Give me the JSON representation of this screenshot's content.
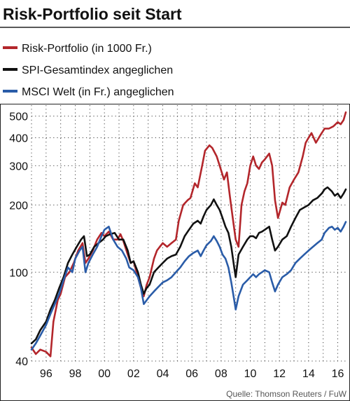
{
  "chart_data": {
    "type": "line",
    "title": "Risk-Portfolio seit Start",
    "source": "Quelle: Thomson Reuters / FuW",
    "y_scale": "log",
    "ylim": [
      40,
      560
    ],
    "xlim": [
      1995.0,
      2016.6
    ],
    "y_ticks": [
      40,
      100,
      200,
      300,
      400,
      500
    ],
    "y_tick_labels": [
      "40",
      "100",
      "200",
      "300",
      "400",
      "500"
    ],
    "x_ticks": [
      1996,
      1998,
      2000,
      2002,
      2004,
      2006,
      2008,
      2010,
      2012,
      2014,
      2016
    ],
    "x_tick_labels": [
      "96",
      "98",
      "00",
      "02",
      "04",
      "06",
      "08",
      "10",
      "12",
      "14",
      "16"
    ],
    "grid": "dotted",
    "legend_placement": "top",
    "series": [
      {
        "name": "Risk-Portfolio (in 1000 Fr.)",
        "color": "#b3262b",
        "points": [
          [
            1995.0,
            46
          ],
          [
            1995.3,
            43
          ],
          [
            1995.6,
            45
          ],
          [
            1996.0,
            44
          ],
          [
            1996.3,
            42
          ],
          [
            1996.5,
            60
          ],
          [
            1996.8,
            75
          ],
          [
            1997.0,
            80
          ],
          [
            1997.3,
            95
          ],
          [
            1997.6,
            100
          ],
          [
            1997.9,
            110
          ],
          [
            1998.2,
            125
          ],
          [
            1998.5,
            135
          ],
          [
            1998.7,
            110
          ],
          [
            1998.9,
            115
          ],
          [
            1999.2,
            125
          ],
          [
            1999.5,
            140
          ],
          [
            1999.8,
            150
          ],
          [
            2000.0,
            145
          ],
          [
            2000.3,
            152
          ],
          [
            2000.6,
            140
          ],
          [
            2000.9,
            140
          ],
          [
            2001.1,
            148
          ],
          [
            2001.3,
            138
          ],
          [
            2001.6,
            120
          ],
          [
            2001.8,
            110
          ],
          [
            2002.0,
            112
          ],
          [
            2002.3,
            95
          ],
          [
            2002.5,
            85
          ],
          [
            2002.7,
            78
          ],
          [
            2002.9,
            88
          ],
          [
            2003.1,
            95
          ],
          [
            2003.4,
            115
          ],
          [
            2003.6,
            125
          ],
          [
            2003.8,
            130
          ],
          [
            2004.0,
            135
          ],
          [
            2004.3,
            130
          ],
          [
            2004.6,
            135
          ],
          [
            2004.9,
            140
          ],
          [
            2005.1,
            170
          ],
          [
            2005.4,
            200
          ],
          [
            2005.7,
            210
          ],
          [
            2005.9,
            215
          ],
          [
            2006.2,
            250
          ],
          [
            2006.4,
            240
          ],
          [
            2006.7,
            300
          ],
          [
            2006.9,
            350
          ],
          [
            2007.2,
            370
          ],
          [
            2007.4,
            360
          ],
          [
            2007.7,
            330
          ],
          [
            2007.9,
            300
          ],
          [
            2008.2,
            260
          ],
          [
            2008.4,
            280
          ],
          [
            2008.6,
            220
          ],
          [
            2008.8,
            175
          ],
          [
            2009.0,
            140
          ],
          [
            2009.2,
            130
          ],
          [
            2009.4,
            200
          ],
          [
            2009.6,
            230
          ],
          [
            2009.8,
            250
          ],
          [
            2010.0,
            300
          ],
          [
            2010.2,
            330
          ],
          [
            2010.4,
            300
          ],
          [
            2010.6,
            290
          ],
          [
            2010.8,
            310
          ],
          [
            2011.0,
            320
          ],
          [
            2011.3,
            340
          ],
          [
            2011.5,
            300
          ],
          [
            2011.7,
            210
          ],
          [
            2011.9,
            175
          ],
          [
            2012.2,
            205
          ],
          [
            2012.4,
            200
          ],
          [
            2012.7,
            240
          ],
          [
            2013.0,
            260
          ],
          [
            2013.3,
            280
          ],
          [
            2013.6,
            330
          ],
          [
            2013.8,
            380
          ],
          [
            2014.0,
            400
          ],
          [
            2014.2,
            420
          ],
          [
            2014.5,
            380
          ],
          [
            2014.8,
            410
          ],
          [
            2015.1,
            440
          ],
          [
            2015.4,
            440
          ],
          [
            2015.7,
            450
          ],
          [
            2016.0,
            470
          ],
          [
            2016.2,
            460
          ],
          [
            2016.4,
            480
          ],
          [
            2016.55,
            520
          ]
        ]
      },
      {
        "name": "SPI-Gesamtindex angeglichen",
        "color": "#111111",
        "points": [
          [
            1995.0,
            48
          ],
          [
            1995.3,
            50
          ],
          [
            1995.6,
            55
          ],
          [
            1996.0,
            60
          ],
          [
            1996.3,
            68
          ],
          [
            1996.6,
            75
          ],
          [
            1996.9,
            85
          ],
          [
            1997.2,
            95
          ],
          [
            1997.5,
            110
          ],
          [
            1997.8,
            120
          ],
          [
            1998.1,
            130
          ],
          [
            1998.4,
            140
          ],
          [
            1998.6,
            145
          ],
          [
            1998.8,
            118
          ],
          [
            1999.0,
            120
          ],
          [
            1999.3,
            130
          ],
          [
            1999.6,
            135
          ],
          [
            1999.9,
            140
          ],
          [
            2000.1,
            145
          ],
          [
            2000.4,
            148
          ],
          [
            2000.7,
            150
          ],
          [
            2001.0,
            140
          ],
          [
            2001.3,
            140
          ],
          [
            2001.6,
            125
          ],
          [
            2001.8,
            110
          ],
          [
            2002.0,
            112
          ],
          [
            2002.3,
            100
          ],
          [
            2002.5,
            88
          ],
          [
            2002.7,
            80
          ],
          [
            2002.9,
            85
          ],
          [
            2003.1,
            88
          ],
          [
            2003.4,
            100
          ],
          [
            2003.7,
            105
          ],
          [
            2004.0,
            110
          ],
          [
            2004.3,
            115
          ],
          [
            2004.6,
            118
          ],
          [
            2004.9,
            120
          ],
          [
            2005.2,
            130
          ],
          [
            2005.5,
            145
          ],
          [
            2005.8,
            155
          ],
          [
            2006.1,
            165
          ],
          [
            2006.4,
            170
          ],
          [
            2006.6,
            165
          ],
          [
            2006.8,
            178
          ],
          [
            2007.0,
            190
          ],
          [
            2007.3,
            200
          ],
          [
            2007.5,
            212
          ],
          [
            2007.7,
            200
          ],
          [
            2007.9,
            190
          ],
          [
            2008.1,
            175
          ],
          [
            2008.3,
            160
          ],
          [
            2008.5,
            150
          ],
          [
            2008.7,
            130
          ],
          [
            2008.9,
            105
          ],
          [
            2009.0,
            95
          ],
          [
            2009.2,
            120
          ],
          [
            2009.5,
            130
          ],
          [
            2009.8,
            140
          ],
          [
            2010.0,
            145
          ],
          [
            2010.2,
            145
          ],
          [
            2010.4,
            142
          ],
          [
            2010.6,
            150
          ],
          [
            2010.8,
            152
          ],
          [
            2011.0,
            155
          ],
          [
            2011.3,
            160
          ],
          [
            2011.5,
            140
          ],
          [
            2011.7,
            125
          ],
          [
            2011.9,
            130
          ],
          [
            2012.2,
            140
          ],
          [
            2012.5,
            145
          ],
          [
            2012.8,
            160
          ],
          [
            2013.1,
            175
          ],
          [
            2013.4,
            190
          ],
          [
            2013.7,
            195
          ],
          [
            2014.0,
            200
          ],
          [
            2014.3,
            210
          ],
          [
            2014.6,
            215
          ],
          [
            2014.9,
            225
          ],
          [
            2015.1,
            235
          ],
          [
            2015.3,
            240
          ],
          [
            2015.6,
            230
          ],
          [
            2015.8,
            220
          ],
          [
            2016.0,
            225
          ],
          [
            2016.2,
            215
          ],
          [
            2016.4,
            225
          ],
          [
            2016.55,
            235
          ]
        ]
      },
      {
        "name": "MSCI Welt (in Fr.) angeglichen",
        "color": "#2a5ca8",
        "points": [
          [
            1995.0,
            45
          ],
          [
            1995.3,
            48
          ],
          [
            1995.6,
            52
          ],
          [
            1996.0,
            58
          ],
          [
            1996.3,
            65
          ],
          [
            1996.6,
            72
          ],
          [
            1996.9,
            80
          ],
          [
            1997.2,
            92
          ],
          [
            1997.5,
            105
          ],
          [
            1997.8,
            100
          ],
          [
            1998.0,
            115
          ],
          [
            1998.3,
            125
          ],
          [
            1998.5,
            130
          ],
          [
            1998.7,
            100
          ],
          [
            1998.9,
            110
          ],
          [
            1999.2,
            120
          ],
          [
            1999.5,
            130
          ],
          [
            1999.8,
            145
          ],
          [
            2000.0,
            155
          ],
          [
            2000.3,
            160
          ],
          [
            2000.6,
            140
          ],
          [
            2000.9,
            130
          ],
          [
            2001.2,
            125
          ],
          [
            2001.5,
            115
          ],
          [
            2001.7,
            105
          ],
          [
            2002.0,
            102
          ],
          [
            2002.3,
            95
          ],
          [
            2002.5,
            85
          ],
          [
            2002.7,
            72
          ],
          [
            2002.9,
            75
          ],
          [
            2003.1,
            78
          ],
          [
            2003.4,
            82
          ],
          [
            2003.7,
            86
          ],
          [
            2004.0,
            90
          ],
          [
            2004.3,
            92
          ],
          [
            2004.6,
            95
          ],
          [
            2004.9,
            100
          ],
          [
            2005.2,
            105
          ],
          [
            2005.5,
            112
          ],
          [
            2005.8,
            118
          ],
          [
            2006.1,
            122
          ],
          [
            2006.4,
            125
          ],
          [
            2006.6,
            118
          ],
          [
            2006.8,
            125
          ],
          [
            2007.0,
            132
          ],
          [
            2007.3,
            138
          ],
          [
            2007.5,
            145
          ],
          [
            2007.7,
            138
          ],
          [
            2007.9,
            130
          ],
          [
            2008.1,
            120
          ],
          [
            2008.3,
            115
          ],
          [
            2008.5,
            105
          ],
          [
            2008.7,
            90
          ],
          [
            2008.9,
            75
          ],
          [
            2009.0,
            68
          ],
          [
            2009.2,
            78
          ],
          [
            2009.5,
            88
          ],
          [
            2009.8,
            92
          ],
          [
            2010.0,
            95
          ],
          [
            2010.2,
            98
          ],
          [
            2010.4,
            95
          ],
          [
            2010.6,
            98
          ],
          [
            2010.8,
            100
          ],
          [
            2011.0,
            102
          ],
          [
            2011.3,
            100
          ],
          [
            2011.5,
            90
          ],
          [
            2011.7,
            82
          ],
          [
            2011.9,
            88
          ],
          [
            2012.2,
            95
          ],
          [
            2012.5,
            98
          ],
          [
            2012.8,
            102
          ],
          [
            2013.1,
            110
          ],
          [
            2013.4,
            115
          ],
          [
            2013.7,
            120
          ],
          [
            2014.0,
            125
          ],
          [
            2014.3,
            130
          ],
          [
            2014.6,
            135
          ],
          [
            2014.9,
            140
          ],
          [
            2015.1,
            150
          ],
          [
            2015.4,
            158
          ],
          [
            2015.6,
            160
          ],
          [
            2015.8,
            155
          ],
          [
            2016.0,
            158
          ],
          [
            2016.2,
            152
          ],
          [
            2016.4,
            160
          ],
          [
            2016.55,
            168
          ]
        ]
      }
    ]
  }
}
